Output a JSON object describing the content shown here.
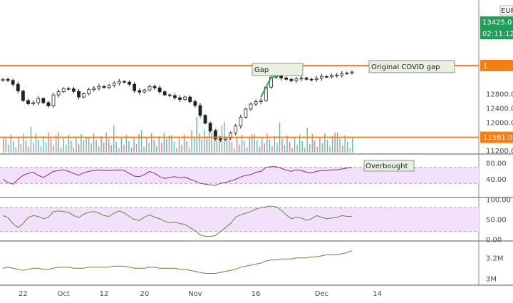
{
  "chart_data": {
    "type": "candlestick",
    "panes": [
      {
        "id": "price",
        "kind": "ohlc",
        "symbol_currency": "EUR",
        "ylim": [
          11150,
          15300
        ],
        "y_ticks": [
          {
            "value": 11200,
            "label": "11200.0"
          },
          {
            "value": 12000,
            "label": "12000.0"
          },
          {
            "value": 12400,
            "label": "12400.0"
          },
          {
            "value": 12800,
            "label": "12800.0"
          }
        ],
        "last_price": {
          "value": 13425,
          "label": "13425.0",
          "color": "#1e9e59"
        },
        "countdown": {
          "label": "02:11:12",
          "color": "#1e9e59"
        },
        "levels": [
          {
            "value": 13610,
            "label": "1",
            "color": "#f57f17",
            "callout": "Original COVID gap"
          },
          {
            "value": 11581,
            "label": "11581.0",
            "color": "#f57f17",
            "callout": ""
          }
        ],
        "annotations": [
          {
            "text": "Gap",
            "date": "Nov 7",
            "price": 12560
          }
        ],
        "series_close": [
          13220,
          13190,
          13080,
          12890,
          12620,
          12530,
          12560,
          12680,
          12560,
          12470,
          12780,
          12870,
          12960,
          12950,
          12880,
          12720,
          12810,
          12930,
          12970,
          13020,
          12990,
          13050,
          13110,
          13160,
          13140,
          13080,
          12900,
          12860,
          12920,
          13020,
          12980,
          12870,
          12780,
          12760,
          12700,
          12650,
          12720,
          12590,
          12480,
          12200,
          11980,
          11760,
          11540,
          11520,
          11560,
          11700,
          11900,
          12150,
          12380,
          12520,
          12590,
          12620,
          13000,
          13280,
          13310,
          13260,
          13220,
          13180,
          13230,
          13260,
          13220,
          13210,
          13250,
          13300,
          13290,
          13330,
          13340,
          13380,
          13400,
          13425
        ],
        "volume_colors": [
          "#26a69a",
          "#ef5350"
        ]
      },
      {
        "id": "rsi",
        "kind": "oscillator",
        "ylim": [
          0,
          100
        ],
        "y_ticks": [
          {
            "value": 80,
            "label": "80.00"
          },
          {
            "value": 40,
            "label": "40.00"
          }
        ],
        "band": [
          30,
          70
        ],
        "callout": "Overbought",
        "series": [
          40,
          32,
          28,
          40,
          50,
          55,
          58,
          50,
          45,
          52,
          60,
          62,
          64,
          60,
          55,
          50,
          57,
          60,
          62,
          64,
          62,
          62,
          63,
          64,
          62,
          55,
          48,
          47,
          52,
          60,
          55,
          47,
          42,
          45,
          47,
          44,
          46,
          40,
          36,
          30,
          28,
          26,
          25,
          30,
          32,
          36,
          40,
          46,
          50,
          52,
          58,
          60,
          70,
          72,
          72,
          68,
          63,
          60,
          64,
          62,
          58,
          56,
          60,
          62,
          62,
          64,
          64,
          66,
          68,
          70
        ]
      },
      {
        "id": "stoch",
        "kind": "oscillator",
        "y_ticks": [
          {
            "value": 100,
            "label": "100.00"
          },
          {
            "value": 50,
            "label": "50.00"
          },
          {
            "value": 0,
            "label": "0.00"
          }
        ],
        "ylim": [
          0,
          100
        ],
        "band": [
          20,
          80
        ],
        "series": [
          60,
          55,
          40,
          30,
          40,
          55,
          60,
          58,
          52,
          56,
          70,
          72,
          70,
          68,
          60,
          55,
          64,
          68,
          70,
          66,
          60,
          58,
          66,
          72,
          66,
          58,
          50,
          48,
          56,
          62,
          56,
          52,
          46,
          42,
          44,
          40,
          38,
          30,
          22,
          12,
          8,
          8,
          10,
          20,
          30,
          40,
          56,
          62,
          66,
          70,
          76,
          80,
          82,
          84,
          82,
          74,
          62,
          52,
          56,
          54,
          48,
          52,
          60,
          56,
          52,
          54,
          55,
          60,
          58,
          58
        ]
      },
      {
        "id": "obv",
        "kind": "line",
        "y_ticks": [
          {
            "value": 3.2,
            "label": "3.2M"
          },
          {
            "value": 3.0,
            "label": "3M"
          }
        ],
        "ylim": [
          2.95,
          3.35
        ],
        "series": [
          3.1,
          3.11,
          3.1,
          3.09,
          3.08,
          3.09,
          3.1,
          3.1,
          3.09,
          3.09,
          3.1,
          3.11,
          3.11,
          3.11,
          3.1,
          3.1,
          3.1,
          3.11,
          3.11,
          3.11,
          3.11,
          3.11,
          3.12,
          3.12,
          3.12,
          3.11,
          3.1,
          3.1,
          3.1,
          3.11,
          3.11,
          3.1,
          3.1,
          3.1,
          3.1,
          3.09,
          3.09,
          3.08,
          3.07,
          3.06,
          3.05,
          3.05,
          3.05,
          3.06,
          3.07,
          3.08,
          3.09,
          3.11,
          3.12,
          3.13,
          3.14,
          3.15,
          3.17,
          3.18,
          3.18,
          3.19,
          3.19,
          3.19,
          3.2,
          3.2,
          3.2,
          3.21,
          3.21,
          3.22,
          3.23,
          3.23,
          3.23,
          3.24,
          3.25,
          3.27
        ]
      }
    ],
    "x_ticks": [
      {
        "index": 4,
        "label": "22"
      },
      {
        "index": 12,
        "label": "Oct"
      },
      {
        "index": 20,
        "label": "12"
      },
      {
        "index": 28,
        "label": "20"
      },
      {
        "index": 38,
        "label": "Nov"
      },
      {
        "index": 50,
        "label": "16"
      },
      {
        "index": 63,
        "label": "Dec"
      },
      {
        "index": 74,
        "label": "14"
      }
    ],
    "colors": {
      "up": "#26a69a",
      "down": "#ef5350",
      "candle": "#222222",
      "rsi_line": "#8e2c6b",
      "osc_line": "#5c8a3a",
      "band_fill": "#f3e1fb",
      "level": "#f57f17",
      "tag_green": "#1e9e59"
    }
  }
}
